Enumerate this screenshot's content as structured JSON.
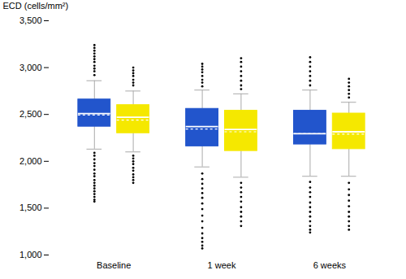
{
  "chart_data": {
    "type": "box",
    "ylabel": "ECD (cells/mm²)",
    "categories": [
      "Baseline",
      "1 week",
      "6 weeks"
    ],
    "ylim": [
      1000,
      3500
    ],
    "yticks": [
      {
        "value": 1000,
        "label": "1,000"
      },
      {
        "value": 1500,
        "label": "1,500"
      },
      {
        "value": 2000,
        "label": "2,000"
      },
      {
        "value": 2500,
        "label": "2,500"
      },
      {
        "value": 3000,
        "label": "3,000"
      },
      {
        "value": 3500,
        "label": "3,500"
      }
    ],
    "grid": false,
    "series": [
      {
        "color": "#2255cc",
        "values": [
          {
            "q1": 2370,
            "median": 2510,
            "q3": 2660,
            "mean": 2495,
            "whislo": 2130,
            "whishi": 2860,
            "fliers_low": [
              1570,
              1590,
              1620,
              1650,
              1680,
              1710,
              1740,
              1770,
              1800,
              1840,
              1870,
              1910,
              1950,
              1980,
              2020,
              2060,
              2090
            ],
            "fliers_high": [
              2920,
              2960,
              2990,
              3020,
              3060,
              3090,
              3120,
              3150,
              3180,
              3210,
              3240
            ]
          },
          {
            "q1": 2160,
            "median": 2370,
            "q3": 2560,
            "mean": 2345,
            "whislo": 1940,
            "whishi": 2760,
            "fliers_low": [
              1070,
              1100,
              1140,
              1180,
              1230,
              1290,
              1360,
              1420,
              1490,
              1550,
              1610,
              1660,
              1710,
              1760,
              1810,
              1870
            ],
            "fliers_high": [
              2800,
              2840,
              2870,
              2910,
              2950,
              2980,
              3010,
              3040
            ]
          },
          {
            "q1": 2180,
            "median": 2295,
            "q3": 2540,
            "mean": 2295,
            "whislo": 1840,
            "whishi": 2760,
            "fliers_low": [
              1240,
              1270,
              1310,
              1360,
              1410,
              1460,
              1510,
              1560,
              1620,
              1670,
              1720,
              1780
            ],
            "fliers_high": [
              2810,
              2860,
              2910,
              2960,
              3010,
              3060,
              3110
            ]
          }
        ]
      },
      {
        "color": "#f5e800",
        "values": [
          {
            "q1": 2300,
            "median": 2470,
            "q3": 2600,
            "mean": 2440,
            "whislo": 2100,
            "whishi": 2750,
            "fliers_low": [
              1770,
              1800,
              1830,
              1860,
              1900,
              1930,
              1970,
              2000,
              2030,
              2060
            ],
            "fliers_high": [
              2810,
              2840,
              2870,
              2910,
              2940,
              2970,
              3000
            ]
          },
          {
            "q1": 2110,
            "median": 2340,
            "q3": 2540,
            "mean": 2315,
            "whislo": 1830,
            "whishi": 2720,
            "fliers_low": [
              1310,
              1360,
              1410,
              1460,
              1510,
              1570,
              1620,
              1670,
              1720,
              1770
            ],
            "fliers_high": [
              2770,
              2810,
              2860,
              2910,
              2960,
              3010,
              3060,
              3100
            ]
          },
          {
            "q1": 2130,
            "median": 2315,
            "q3": 2510,
            "mean": 2290,
            "whislo": 1840,
            "whishi": 2630,
            "fliers_low": [
              1270,
              1310,
              1360,
              1410,
              1460,
              1520,
              1580,
              1640,
              1700,
              1770
            ],
            "fliers_high": [
              2680,
              2720,
              2760,
              2800,
              2840,
              2880
            ]
          }
        ]
      }
    ]
  }
}
